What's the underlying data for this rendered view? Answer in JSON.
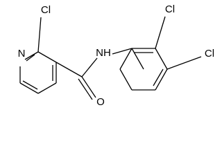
{
  "atoms": [
    {
      "label": "N"
    },
    {
      "label": "Cl"
    },
    {
      "label": "O"
    },
    {
      "label": "NH"
    },
    {
      "label": "Cl"
    },
    {
      "label": "Cl"
    }
  ]
}
